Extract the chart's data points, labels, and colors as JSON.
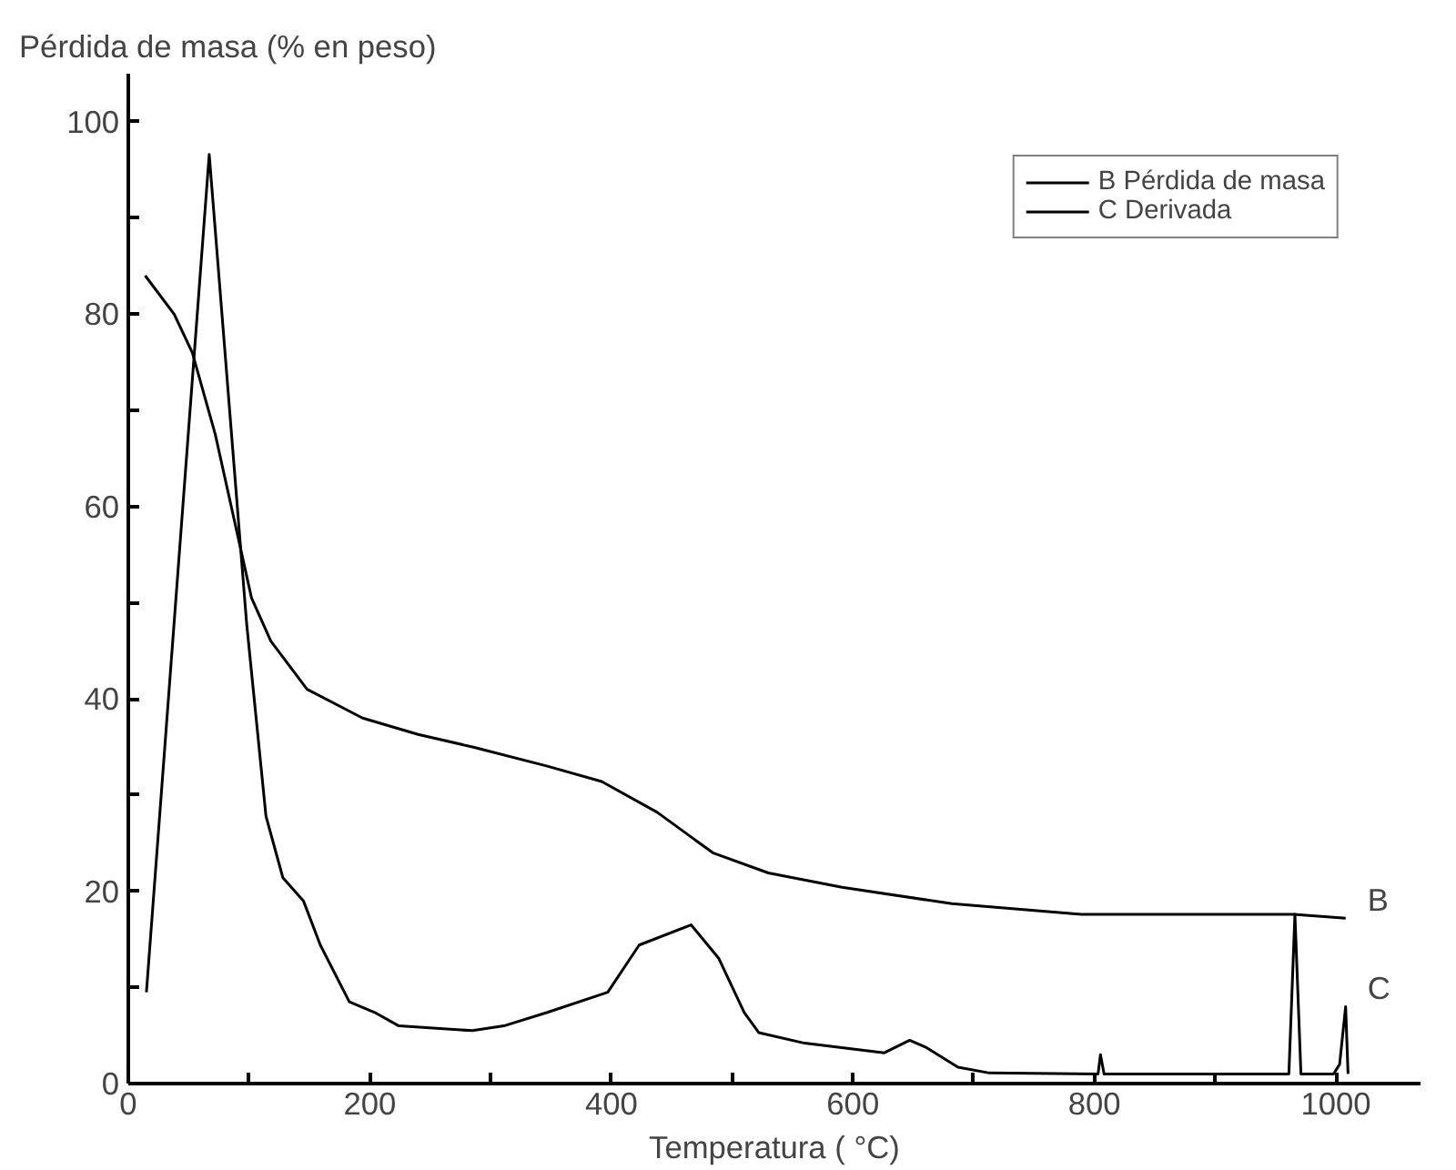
{
  "chart_data": {
    "type": "line",
    "ylabel": "Pérdida de masa  (% en peso)",
    "xlabel": "Temperatura ( °C)",
    "xlim": [
      0,
      1070
    ],
    "ylim": [
      0,
      105
    ],
    "xticks": [
      0,
      {
        "value": 100,
        "label": null
      },
      200,
      {
        "value": 300,
        "label": null
      },
      400,
      {
        "value": 500,
        "label": null
      },
      600,
      {
        "value": 700,
        "label": null
      },
      800,
      {
        "value": 900,
        "label": null
      },
      1000
    ],
    "yticks": [
      0,
      {
        "value": 10,
        "label": null
      },
      20,
      {
        "value": 30,
        "label": null
      },
      40,
      {
        "value": 50,
        "label": null
      },
      60,
      {
        "value": 70,
        "label": null
      },
      80,
      {
        "value": 90,
        "label": null
      },
      100
    ],
    "grid": false,
    "legend": "top right",
    "marker": "none",
    "line_style": "solid",
    "series": [
      {
        "name": "B Pérdida de masa",
        "color": "#000000",
        "x": [
          14,
          38,
          53,
          72,
          87,
          102,
          118,
          148,
          194,
          240,
          285,
          347,
          392,
          438,
          484,
          530,
          591,
          682,
          789,
          965,
          1008
        ],
        "values": [
          84,
          80,
          76,
          67.5,
          59,
          50.5,
          46,
          41,
          38,
          36.3,
          35,
          33,
          31.4,
          28.2,
          24,
          21.9,
          20.4,
          18.7,
          17.6,
          17.6,
          17.2
        ]
      },
      {
        "name": "C Derivada",
        "color": "#000000",
        "x": [
          15,
          67,
          98,
          114,
          128,
          145,
          159,
          183,
          204,
          224,
          285,
          311,
          347,
          397,
          423,
          466,
          489,
          510,
          522,
          560,
          626,
          647,
          660,
          687,
          713,
          803,
          805,
          808,
          942,
          961,
          966,
          971,
          998,
          1003,
          1008,
          1010
        ],
        "values": [
          9.5,
          96.6,
          47.8,
          27.8,
          21.4,
          19,
          14.4,
          8.5,
          7.4,
          6,
          5.5,
          6,
          7.4,
          9.5,
          14.4,
          16.5,
          13,
          7.4,
          5.3,
          4.2,
          3.2,
          4.5,
          3.8,
          1.7,
          1.1,
          1,
          3,
          1,
          1,
          1,
          17.6,
          1,
          1,
          2,
          8,
          1
        ]
      }
    ],
    "annotations": [
      {
        "text": "B",
        "x": 1008,
        "y": 17.2
      },
      {
        "text": "C",
        "x": 1008,
        "y": 8
      }
    ]
  }
}
